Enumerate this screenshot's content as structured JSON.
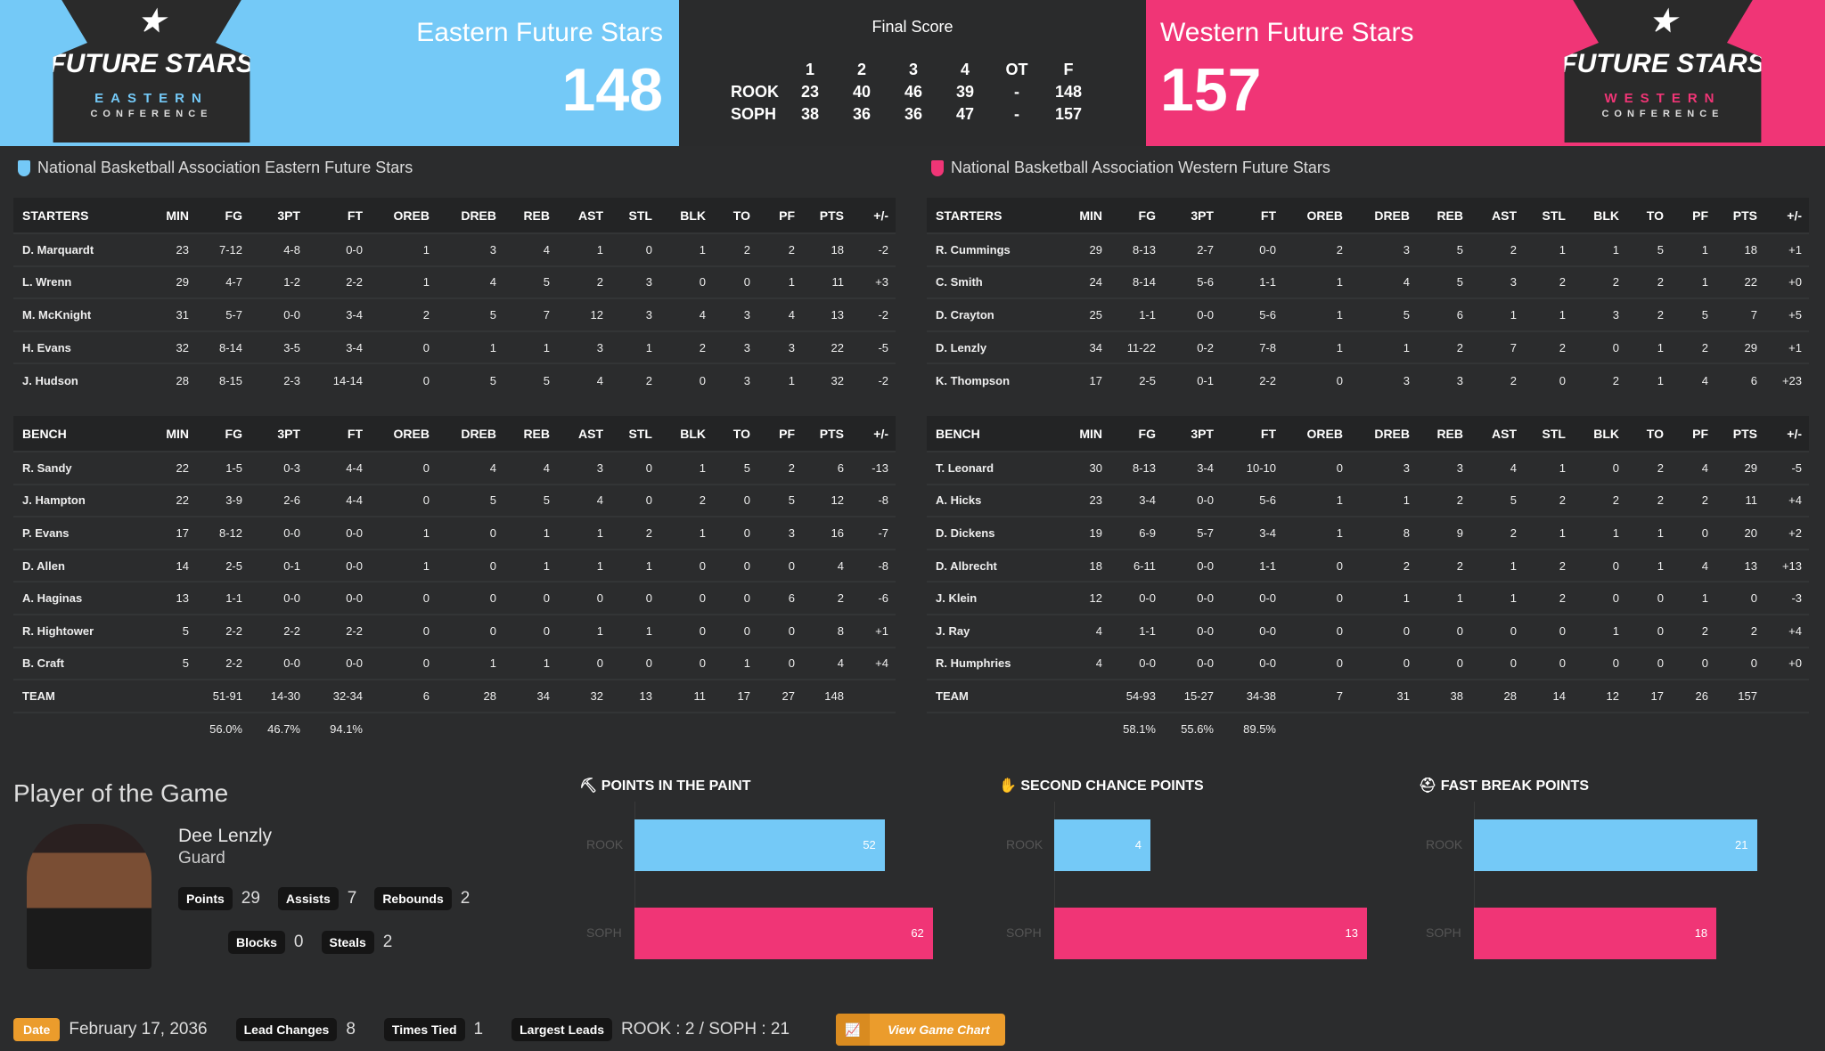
{
  "header": {
    "east": {
      "name": "Eastern Future Stars",
      "score": "148",
      "logo_text": "FUTURE STARS",
      "logo_conf": "EASTERN",
      "logo_conf2": "CONFERENCE",
      "color": "#74c9f7"
    },
    "west": {
      "name": "Western Future Stars",
      "score": "157",
      "logo_text": "FUTURE STARS",
      "logo_conf": "WESTERN",
      "logo_conf2": "CONFERENCE",
      "color": "#f03576"
    },
    "final_label": "Final Score",
    "linescore": {
      "cols": [
        "",
        "1",
        "2",
        "3",
        "4",
        "OT",
        "F"
      ],
      "rows": [
        [
          "ROOK",
          "23",
          "40",
          "46",
          "39",
          "-",
          "148"
        ],
        [
          "SOPH",
          "38",
          "36",
          "36",
          "47",
          "-",
          "157"
        ]
      ]
    }
  },
  "columns": [
    "MIN",
    "FG",
    "3PT",
    "FT",
    "OREB",
    "DREB",
    "REB",
    "AST",
    "STL",
    "BLK",
    "TO",
    "PF",
    "PTS",
    "+/-"
  ],
  "teams": [
    {
      "title": "National Basketball Association Eastern Future Stars",
      "starters_label": "STARTERS",
      "bench_label": "BENCH",
      "starters": [
        [
          "D. Marquardt",
          "23",
          "7-12",
          "4-8",
          "0-0",
          "1",
          "3",
          "4",
          "1",
          "0",
          "1",
          "2",
          "2",
          "18",
          "-2"
        ],
        [
          "L. Wrenn",
          "29",
          "4-7",
          "1-2",
          "2-2",
          "1",
          "4",
          "5",
          "2",
          "3",
          "0",
          "0",
          "1",
          "11",
          "+3"
        ],
        [
          "M. McKnight",
          "31",
          "5-7",
          "0-0",
          "3-4",
          "2",
          "5",
          "7",
          "12",
          "3",
          "4",
          "3",
          "4",
          "13",
          "-2"
        ],
        [
          "H. Evans",
          "32",
          "8-14",
          "3-5",
          "3-4",
          "0",
          "1",
          "1",
          "3",
          "1",
          "2",
          "3",
          "3",
          "22",
          "-5"
        ],
        [
          "J. Hudson",
          "28",
          "8-15",
          "2-3",
          "14-14",
          "0",
          "5",
          "5",
          "4",
          "2",
          "0",
          "3",
          "1",
          "32",
          "-2"
        ]
      ],
      "bench": [
        [
          "R. Sandy",
          "22",
          "1-5",
          "0-3",
          "4-4",
          "0",
          "4",
          "4",
          "3",
          "0",
          "1",
          "5",
          "2",
          "6",
          "-13"
        ],
        [
          "J. Hampton",
          "22",
          "3-9",
          "2-6",
          "4-4",
          "0",
          "5",
          "5",
          "4",
          "0",
          "2",
          "0",
          "5",
          "12",
          "-8"
        ],
        [
          "P. Evans",
          "17",
          "8-12",
          "0-0",
          "0-0",
          "1",
          "0",
          "1",
          "1",
          "2",
          "1",
          "0",
          "3",
          "16",
          "-7"
        ],
        [
          "D. Allen",
          "14",
          "2-5",
          "0-1",
          "0-0",
          "1",
          "0",
          "1",
          "1",
          "1",
          "0",
          "0",
          "0",
          "4",
          "-8"
        ],
        [
          "A. Haginas",
          "13",
          "1-1",
          "0-0",
          "0-0",
          "0",
          "0",
          "0",
          "0",
          "0",
          "0",
          "0",
          "6",
          "2",
          "-6"
        ],
        [
          "R. Hightower",
          "5",
          "2-2",
          "2-2",
          "2-2",
          "0",
          "0",
          "0",
          "1",
          "1",
          "0",
          "0",
          "0",
          "8",
          "+1"
        ],
        [
          "B. Craft",
          "5",
          "2-2",
          "0-0",
          "0-0",
          "0",
          "1",
          "1",
          "0",
          "0",
          "0",
          "1",
          "0",
          "4",
          "+4"
        ],
        [
          "TEAM",
          "",
          "51-91",
          "14-30",
          "32-34",
          "6",
          "28",
          "34",
          "32",
          "13",
          "11",
          "17",
          "27",
          "148",
          ""
        ],
        [
          "",
          "",
          "56.0%",
          "46.7%",
          "94.1%",
          "",
          "",
          "",
          "",
          "",
          "",
          "",
          "",
          "",
          ""
        ]
      ]
    },
    {
      "title": "National Basketball Association Western Future Stars",
      "starters_label": "STARTERS",
      "bench_label": "BENCH",
      "starters": [
        [
          "R. Cummings",
          "29",
          "8-13",
          "2-7",
          "0-0",
          "2",
          "3",
          "5",
          "2",
          "1",
          "1",
          "5",
          "1",
          "18",
          "+1"
        ],
        [
          "C. Smith",
          "24",
          "8-14",
          "5-6",
          "1-1",
          "1",
          "4",
          "5",
          "3",
          "2",
          "2",
          "2",
          "1",
          "22",
          "+0"
        ],
        [
          "D. Crayton",
          "25",
          "1-1",
          "0-0",
          "5-6",
          "1",
          "5",
          "6",
          "1",
          "1",
          "3",
          "2",
          "5",
          "7",
          "+5"
        ],
        [
          "D. Lenzly",
          "34",
          "11-22",
          "0-2",
          "7-8",
          "1",
          "1",
          "2",
          "7",
          "2",
          "0",
          "1",
          "2",
          "29",
          "+1"
        ],
        [
          "K. Thompson",
          "17",
          "2-5",
          "0-1",
          "2-2",
          "0",
          "3",
          "3",
          "2",
          "0",
          "2",
          "1",
          "4",
          "6",
          "+23"
        ]
      ],
      "bench": [
        [
          "T. Leonard",
          "30",
          "8-13",
          "3-4",
          "10-10",
          "0",
          "3",
          "3",
          "4",
          "1",
          "0",
          "2",
          "4",
          "29",
          "-5"
        ],
        [
          "A. Hicks",
          "23",
          "3-4",
          "0-0",
          "5-6",
          "1",
          "1",
          "2",
          "5",
          "2",
          "2",
          "2",
          "2",
          "11",
          "+4"
        ],
        [
          "D. Dickens",
          "19",
          "6-9",
          "5-7",
          "3-4",
          "1",
          "8",
          "9",
          "2",
          "1",
          "1",
          "1",
          "0",
          "20",
          "+2"
        ],
        [
          "D. Albrecht",
          "18",
          "6-11",
          "0-0",
          "1-1",
          "0",
          "2",
          "2",
          "1",
          "2",
          "0",
          "1",
          "4",
          "13",
          "+13"
        ],
        [
          "J. Klein",
          "12",
          "0-0",
          "0-0",
          "0-0",
          "0",
          "1",
          "1",
          "1",
          "2",
          "0",
          "0",
          "1",
          "0",
          "-3"
        ],
        [
          "J. Ray",
          "4",
          "1-1",
          "0-0",
          "0-0",
          "0",
          "0",
          "0",
          "0",
          "0",
          "1",
          "0",
          "2",
          "2",
          "+4"
        ],
        [
          "R. Humphries",
          "4",
          "0-0",
          "0-0",
          "0-0",
          "0",
          "0",
          "0",
          "0",
          "0",
          "0",
          "0",
          "0",
          "0",
          "+0"
        ],
        [
          "TEAM",
          "",
          "54-93",
          "15-27",
          "34-38",
          "7",
          "31",
          "38",
          "28",
          "14",
          "12",
          "17",
          "26",
          "157",
          ""
        ],
        [
          "",
          "",
          "58.1%",
          "55.6%",
          "89.5%",
          "",
          "",
          "",
          "",
          "",
          "",
          "",
          "",
          "",
          ""
        ]
      ]
    }
  ],
  "potg": {
    "title": "Player of the Game",
    "name": "Dee Lenzly",
    "position": "Guard",
    "stats": [
      {
        "label": "Points",
        "value": "29"
      },
      {
        "label": "Assists",
        "value": "7"
      },
      {
        "label": "Rebounds",
        "value": "2"
      },
      {
        "label": "Blocks",
        "value": "0"
      },
      {
        "label": "Steals",
        "value": "2"
      }
    ]
  },
  "chart_data": [
    {
      "type": "bar",
      "title": "POINTS IN THE PAINT",
      "icon": "paint-roller-icon",
      "categories": [
        "ROOK",
        "SOPH"
      ],
      "values": [
        52,
        62
      ],
      "xlim": [
        0,
        70
      ],
      "colors": [
        "#74c9f7",
        "#f03576"
      ]
    },
    {
      "type": "bar",
      "title": "SECOND CHANCE POINTS",
      "icon": "hand-icon",
      "categories": [
        "ROOK",
        "SOPH"
      ],
      "values": [
        4,
        13
      ],
      "xlim": [
        0,
        14
      ],
      "colors": [
        "#74c9f7",
        "#f03576"
      ]
    },
    {
      "type": "bar",
      "title": "FAST BREAK POINTS",
      "icon": "helmet-icon",
      "categories": [
        "ROOK",
        "SOPH"
      ],
      "values": [
        21,
        18
      ],
      "xlim": [
        0,
        25
      ],
      "colors": [
        "#74c9f7",
        "#f03576"
      ]
    }
  ],
  "footer": {
    "date_label": "Date",
    "date": "February 17, 2036",
    "lead_changes_label": "Lead Changes",
    "lead_changes": "8",
    "times_tied_label": "Times Tied",
    "times_tied": "1",
    "largest_leads_label": "Largest Leads",
    "largest_leads": "ROOK : 2 / SOPH : 21",
    "view_chart": "View Game Chart"
  }
}
